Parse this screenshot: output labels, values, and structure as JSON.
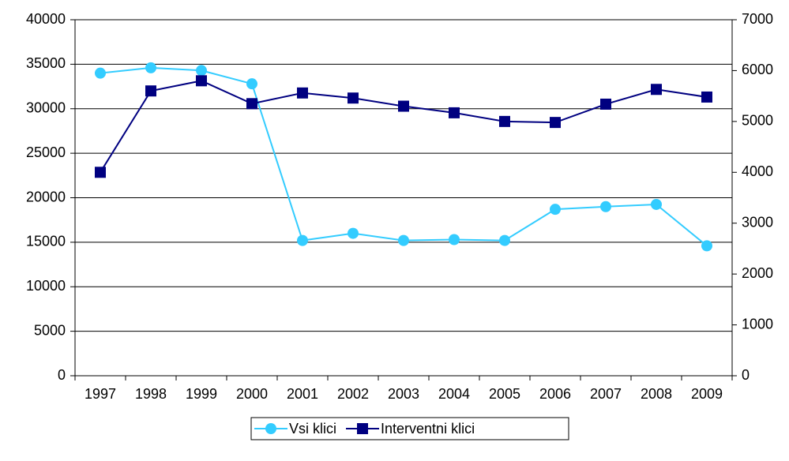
{
  "chart_data": {
    "type": "line",
    "categories": [
      "1997",
      "1998",
      "1999",
      "2000",
      "2001",
      "2002",
      "2003",
      "2004",
      "2005",
      "2006",
      "2007",
      "2008",
      "2009"
    ],
    "series": [
      {
        "name": "Vsi klici",
        "color": "#33ccff",
        "marker": "circle",
        "axis": "y",
        "values": [
          34000,
          34600,
          34300,
          32800,
          15200,
          16000,
          15200,
          15300,
          15200,
          18700,
          19000,
          19250,
          14600
        ]
      },
      {
        "name": "Interventni klici",
        "color": "#000080",
        "marker": "square",
        "axis": "y2",
        "values": [
          4000,
          5600,
          5800,
          5350,
          5560,
          5460,
          5300,
          5170,
          5000,
          4980,
          5340,
          5630,
          5480
        ]
      }
    ],
    "ylim": [
      0,
      40000
    ],
    "yticks": [
      0,
      5000,
      10000,
      15000,
      20000,
      25000,
      30000,
      35000,
      40000
    ],
    "y2lim": [
      0,
      7000
    ],
    "y2ticks": [
      0,
      1000,
      2000,
      3000,
      4000,
      5000,
      6000,
      7000
    ],
    "grid": true,
    "legend": "bottom"
  }
}
